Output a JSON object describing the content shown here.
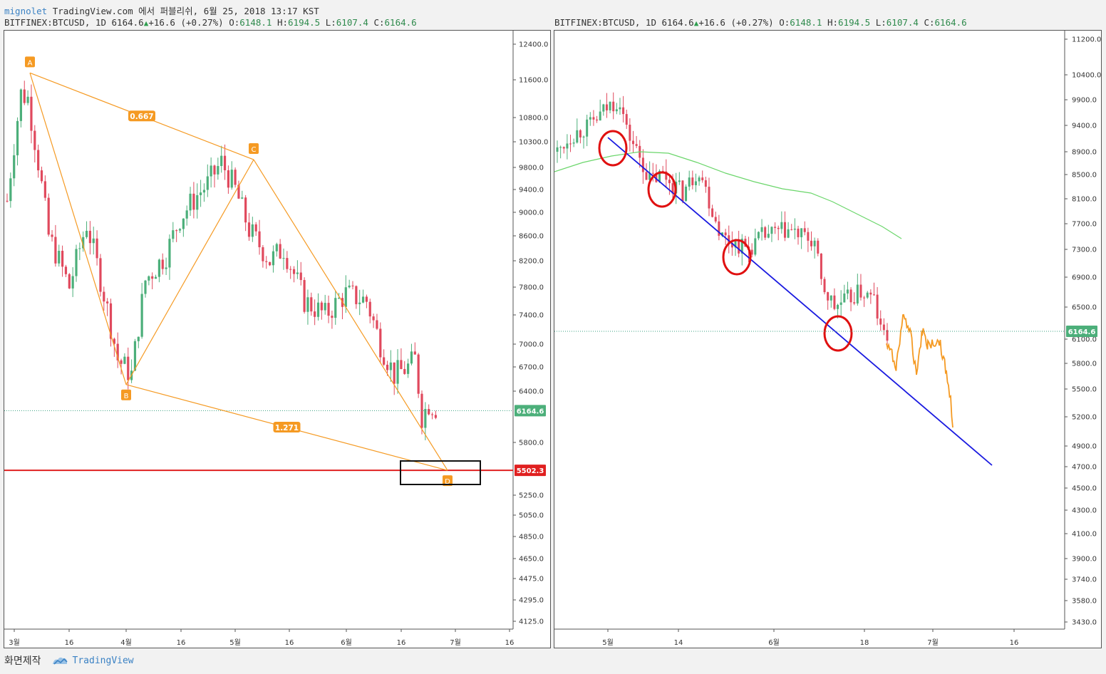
{
  "header": {
    "user": "mignolet",
    "publish_text": "TradingView.com 에서 퍼블리쉬, 6월 25, 2018 13:17 KST"
  },
  "ohlc": {
    "symbol": "BITFINEX:BTCUSD, 1D",
    "last": "6164.6",
    "arrow": "▲",
    "change": "+16.6 (+0.27%)",
    "o_label": "O:",
    "o": "6148.1",
    "h_label": "H:",
    "h": "6194.5",
    "l_label": "L:",
    "l": "6107.4",
    "c_label": "C:",
    "c": "6164.6"
  },
  "footer": {
    "made": "화면제작",
    "brand": "TradingView"
  },
  "colors": {
    "up": "#4caf7a",
    "down": "#e0495d",
    "pattern": "#f59a23",
    "support": "#e02020",
    "trend": "#1a1ae0",
    "ma": "#6bd66b",
    "circle": "#e01010",
    "forecast": "#f59a23"
  },
  "chart_data": [
    {
      "type": "candlestick",
      "panel": "left",
      "symbol": "BITFINEX:BTCUSD",
      "timeframe": "1D",
      "y_ticks": [
        12400.0,
        11600.0,
        10800.0,
        10300.0,
        9800.0,
        9400.0,
        9000.0,
        8600.0,
        8200.0,
        7800.0,
        7400.0,
        7000.0,
        6700.0,
        6400.0,
        5800.0,
        5250.0,
        5050.0,
        4850.0,
        4650.0,
        4475.0,
        4295.0,
        4125.0
      ],
      "x_ticks": [
        "3월",
        "16",
        "4월",
        "16",
        "5월",
        "16",
        "6월",
        "16",
        "7월",
        "16"
      ],
      "current_price_label": "6164.6",
      "support_label": "5502.3",
      "pattern_points": [
        {
          "label": "A",
          "price": 11750
        },
        {
          "label": "B",
          "price": 6480
        },
        {
          "label": "C",
          "price": 9950
        },
        {
          "label": "D",
          "price": 5502
        }
      ],
      "ratio_labels": [
        "0.667",
        "1.271"
      ]
    },
    {
      "type": "candlestick",
      "panel": "right",
      "symbol": "BITFINEX:BTCUSD",
      "timeframe": "1D",
      "y_ticks": [
        11200.0,
        10400.0,
        9900.0,
        9400.0,
        8900.0,
        8500.0,
        8100.0,
        7700.0,
        7300.0,
        6900.0,
        6500.0,
        6100.0,
        5800.0,
        5500.0,
        5200.0,
        4900.0,
        4700.0,
        4500.0,
        4300.0,
        4100.0,
        3900.0,
        3740.0,
        3580.0,
        3430.0
      ],
      "x_ticks": [
        "5월",
        "14",
        "6월",
        "18",
        "7월",
        "16"
      ],
      "current_price_label": "6164.6"
    }
  ]
}
